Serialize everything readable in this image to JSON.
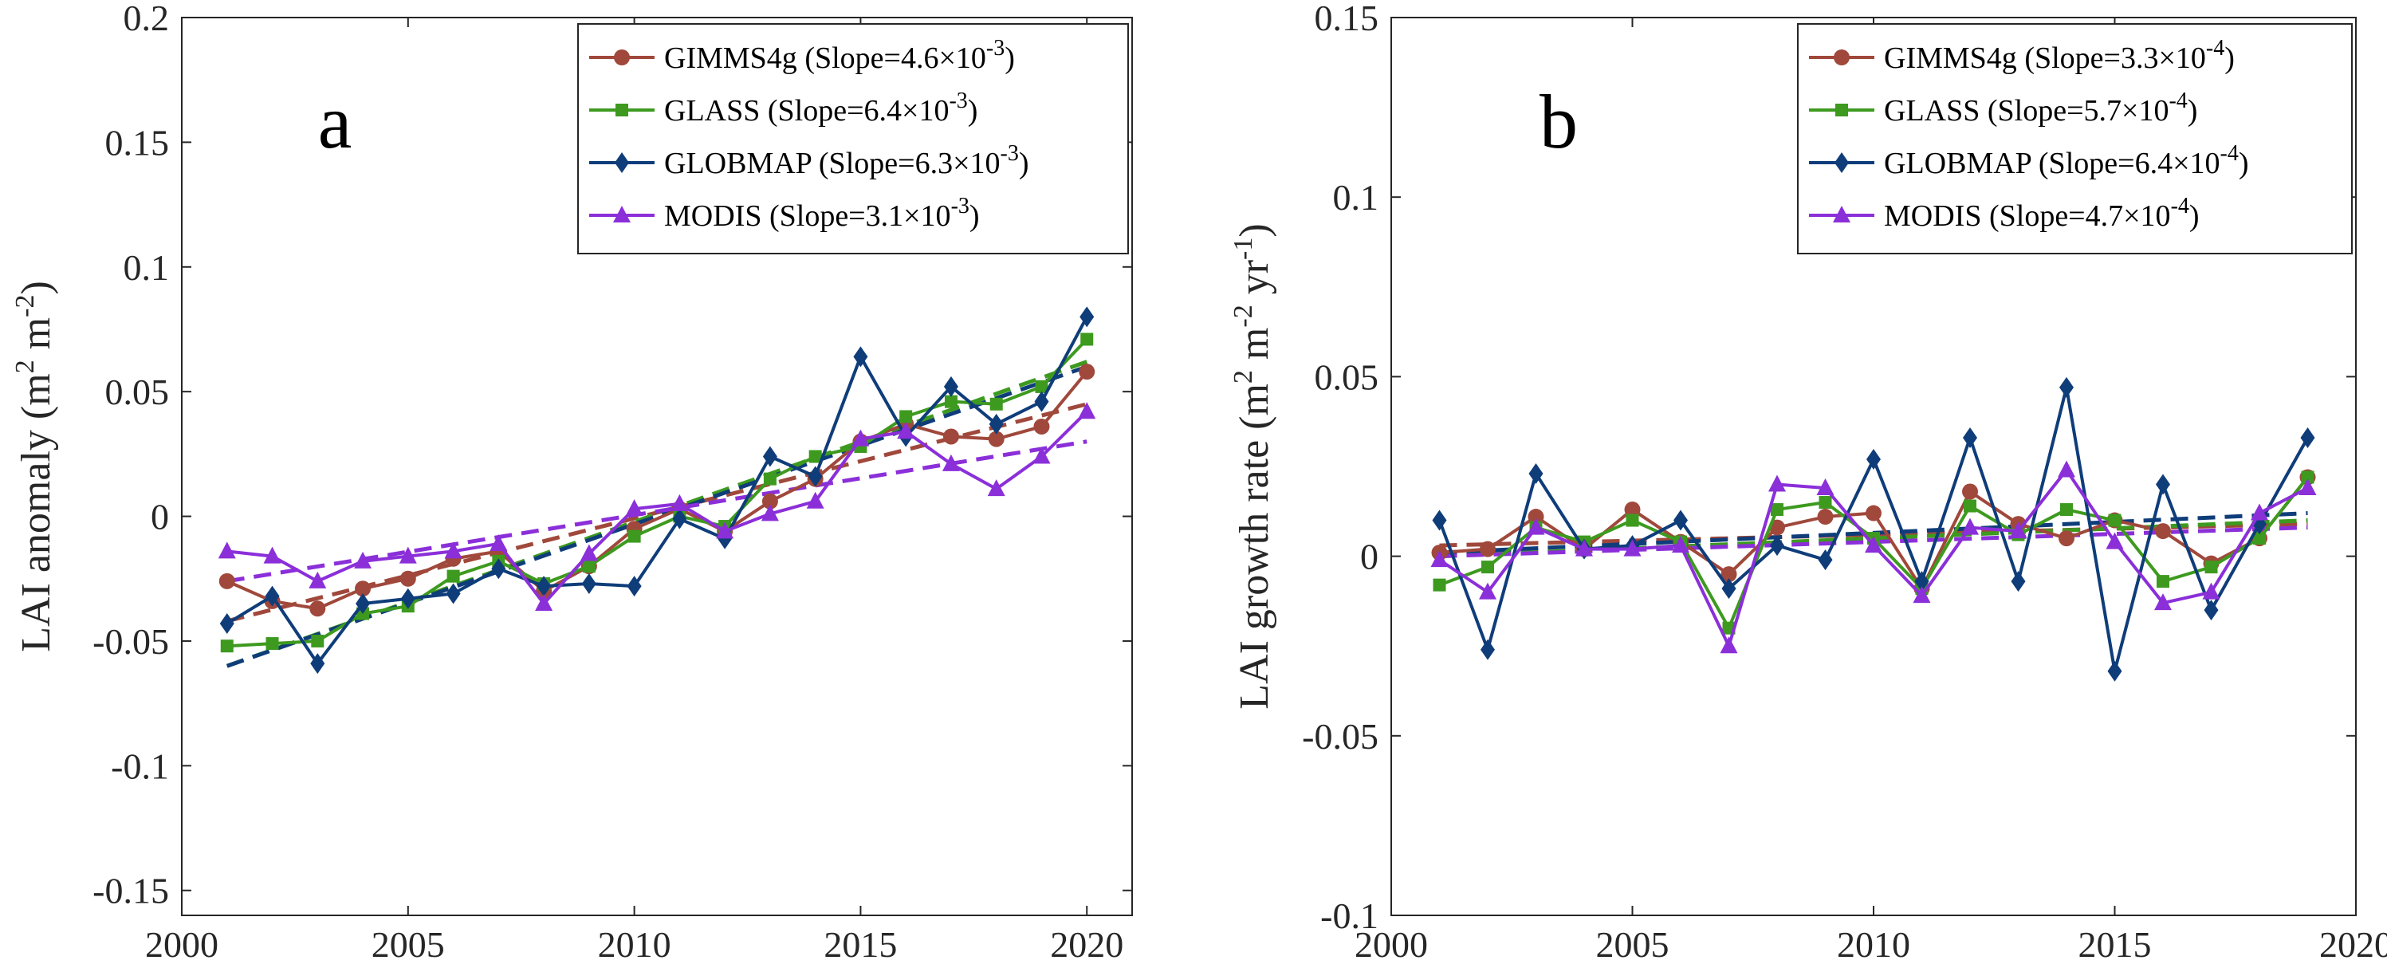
{
  "chart_data": [
    {
      "type": "line",
      "panel_label": "a",
      "ylabel": {
        "text": "LAI anomaly (m",
        "sup1": "2",
        "mid": " m",
        "sup2": "-2",
        "end": ")"
      },
      "xlim": [
        2000,
        2021
      ],
      "ylim": [
        -0.16,
        0.2
      ],
      "xticks": [
        2000,
        2005,
        2010,
        2015,
        2020
      ],
      "xtick_labels": [
        "2000",
        "2005",
        "2010",
        "2015",
        "2020"
      ],
      "yticks": [
        -0.15,
        -0.1,
        -0.05,
        0,
        0.05,
        0.1,
        0.15,
        0.2
      ],
      "ytick_labels": [
        "-0.15",
        "-0.1",
        "-0.05",
        "0",
        "0.05",
        "0.1",
        "0.15",
        "0.2"
      ],
      "legend_position": "top-right",
      "x": [
        2001,
        2002,
        2003,
        2004,
        2005,
        2006,
        2007,
        2008,
        2009,
        2010,
        2011,
        2012,
        2013,
        2014,
        2015,
        2016,
        2017,
        2018,
        2019,
        2020
      ],
      "series": [
        {
          "name": "GIMMS4g",
          "slope_mant": "4.6",
          "slope_exp": "-3",
          "color": "#a0483b",
          "marker": "circle",
          "values": [
            -0.026,
            -0.034,
            -0.037,
            -0.029,
            -0.025,
            -0.017,
            -0.014,
            -0.03,
            -0.02,
            -0.005,
            0.003,
            -0.006,
            0.006,
            0.015,
            0.03,
            0.037,
            0.032,
            0.031,
            0.036,
            0.058
          ],
          "trend": [
            -0.042,
            0.045
          ]
        },
        {
          "name": "GLASS",
          "slope_mant": "6.4",
          "slope_exp": "-3",
          "color": "#3d9a1f",
          "marker": "square",
          "values": [
            -0.052,
            -0.051,
            -0.05,
            -0.039,
            -0.036,
            -0.024,
            -0.018,
            -0.027,
            -0.02,
            -0.008,
            0.0,
            -0.004,
            0.015,
            0.024,
            0.028,
            0.04,
            0.046,
            0.045,
            0.052,
            0.071
          ],
          "trend": [
            -0.06,
            0.062
          ]
        },
        {
          "name": "GLOBMAP",
          "slope_mant": "6.3",
          "slope_exp": "-3",
          "color": "#0f3d7a",
          "marker": "diamond",
          "values": [
            -0.043,
            -0.032,
            -0.059,
            -0.035,
            -0.033,
            -0.031,
            -0.021,
            -0.028,
            -0.027,
            -0.028,
            -0.001,
            -0.009,
            0.024,
            0.016,
            0.064,
            0.032,
            0.052,
            0.037,
            0.046,
            0.08
          ],
          "trend": [
            -0.06,
            0.06
          ]
        },
        {
          "name": "MODIS",
          "slope_mant": "3.1",
          "slope_exp": "-3",
          "color": "#8b2fd9",
          "marker": "triangle",
          "values": [
            -0.014,
            -0.016,
            -0.026,
            -0.018,
            -0.016,
            -0.014,
            -0.011,
            -0.035,
            -0.015,
            0.003,
            0.005,
            -0.006,
            0.001,
            0.006,
            0.031,
            0.034,
            0.021,
            0.011,
            0.024,
            0.042
          ],
          "trend": [
            -0.026,
            0.03
          ]
        }
      ]
    },
    {
      "type": "line",
      "panel_label": "b",
      "ylabel": {
        "text": "LAI growth rate (m",
        "sup1": "2",
        "mid": " m",
        "sup2": "-2",
        "mid2": " yr",
        "sup3": "-1",
        "end": ")"
      },
      "xlim": [
        2000,
        2020
      ],
      "ylim": [
        -0.1,
        0.15
      ],
      "xticks": [
        2000,
        2005,
        2010,
        2015,
        2020
      ],
      "xtick_labels": [
        "2000",
        "2005",
        "2010",
        "2015",
        "2020"
      ],
      "yticks": [
        -0.1,
        -0.05,
        0,
        0.05,
        0.1,
        0.15
      ],
      "ytick_labels": [
        "-0.1",
        "-0.05",
        "0",
        "0.05",
        "0.1",
        "0.15"
      ],
      "legend_position": "top-right",
      "x": [
        2001,
        2002,
        2003,
        2004,
        2005,
        2006,
        2007,
        2008,
        2009,
        2010,
        2011,
        2012,
        2013,
        2014,
        2015,
        2016,
        2017,
        2018,
        2019
      ],
      "series": [
        {
          "name": "GIMMS4g",
          "slope_mant": "3.3",
          "slope_exp": "-4",
          "color": "#a0483b",
          "marker": "circle",
          "values": [
            0.001,
            0.002,
            0.011,
            0.002,
            0.013,
            0.004,
            -0.005,
            0.008,
            0.011,
            0.012,
            -0.009,
            0.018,
            0.009,
            0.005,
            0.01,
            0.007,
            -0.002,
            0.005,
            0.022
          ],
          "trend": [
            0.003,
            0.009
          ]
        },
        {
          "name": "GLASS",
          "slope_mant": "5.7",
          "slope_exp": "-4",
          "color": "#3d9a1f",
          "marker": "square",
          "values": [
            -0.008,
            -0.003,
            0.008,
            0.004,
            0.01,
            0.004,
            -0.02,
            0.013,
            0.015,
            0.005,
            -0.009,
            0.014,
            0.006,
            0.013,
            0.01,
            -0.007,
            -0.003,
            0.005,
            0.022
          ],
          "trend": [
            0.0,
            0.01
          ]
        },
        {
          "name": "GLOBMAP",
          "slope_mant": "6.4",
          "slope_exp": "-4",
          "color": "#0f3d7a",
          "marker": "diamond",
          "values": [
            0.01,
            -0.026,
            0.023,
            0.002,
            0.003,
            0.01,
            -0.009,
            0.003,
            -0.001,
            0.027,
            -0.007,
            0.033,
            -0.007,
            0.047,
            -0.032,
            0.02,
            -0.015,
            0.009,
            0.033
          ],
          "trend": [
            0.001,
            0.012
          ]
        },
        {
          "name": "MODIS",
          "slope_mant": "4.7",
          "slope_exp": "-4",
          "color": "#8b2fd9",
          "marker": "triangle",
          "values": [
            -0.001,
            -0.01,
            0.008,
            0.002,
            0.002,
            0.003,
            -0.025,
            0.02,
            0.019,
            0.003,
            -0.011,
            0.008,
            0.007,
            0.024,
            0.004,
            -0.013,
            -0.01,
            0.012,
            0.019
          ],
          "trend": [
            0.0,
            0.008
          ]
        }
      ]
    }
  ]
}
